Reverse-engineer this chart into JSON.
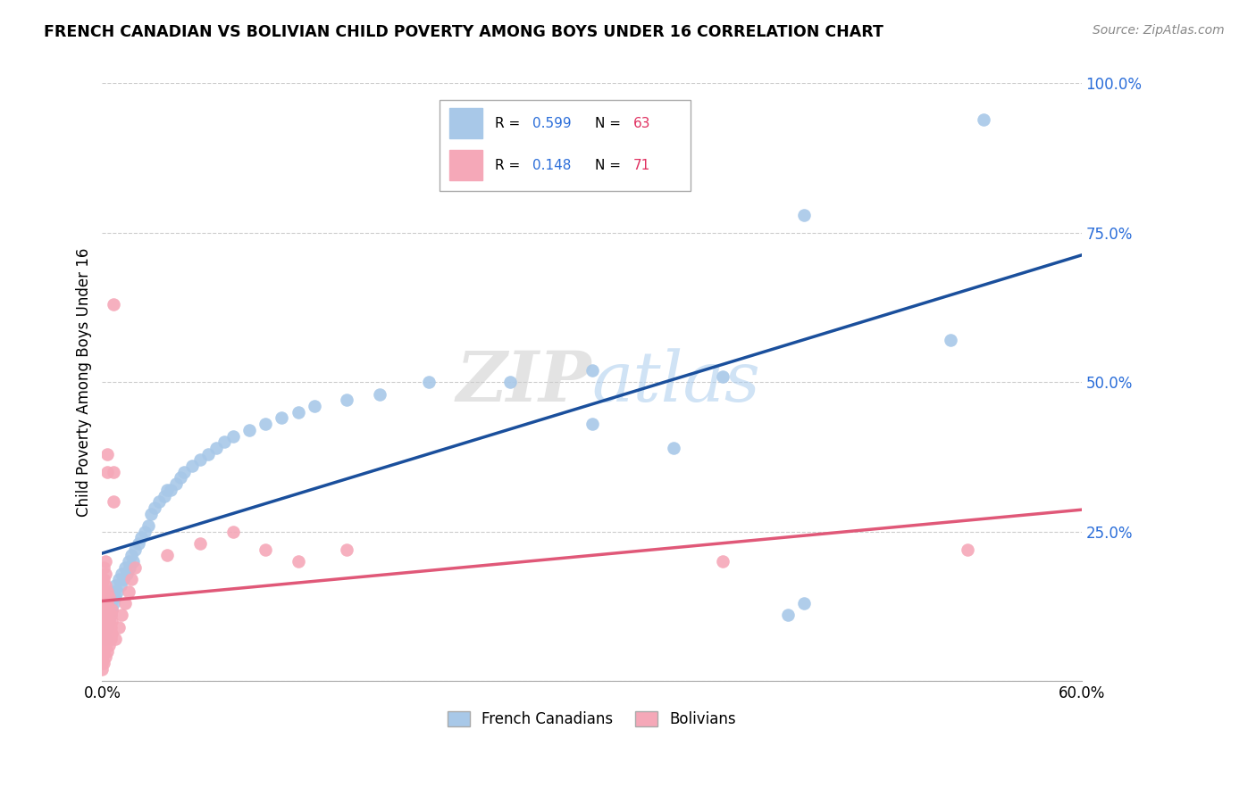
{
  "title": "FRENCH CANADIAN VS BOLIVIAN CHILD POVERTY AMONG BOYS UNDER 16 CORRELATION CHART",
  "source": "Source: ZipAtlas.com",
  "ylabel": "Child Poverty Among Boys Under 16",
  "xlim": [
    0.0,
    0.6
  ],
  "ylim": [
    0.0,
    1.0
  ],
  "yticks": [
    0.0,
    0.25,
    0.5,
    0.75,
    1.0
  ],
  "yticklabels": [
    "",
    "25.0%",
    "50.0%",
    "75.0%",
    "100.0%"
  ],
  "french_r": 0.599,
  "french_n": 63,
  "bolivian_r": 0.148,
  "bolivian_n": 71,
  "french_color": "#a8c8e8",
  "bolivian_color": "#f5a8b8",
  "french_line_color": "#1a4f9c",
  "bolivian_line_color": "#e05878",
  "french_canadians": [
    [
      0.001,
      0.08
    ],
    [
      0.002,
      0.07
    ],
    [
      0.003,
      0.09
    ],
    [
      0.003,
      0.11
    ],
    [
      0.004,
      0.1
    ],
    [
      0.004,
      0.12
    ],
    [
      0.005,
      0.11
    ],
    [
      0.005,
      0.13
    ],
    [
      0.006,
      0.12
    ],
    [
      0.006,
      0.14
    ],
    [
      0.007,
      0.13
    ],
    [
      0.007,
      0.15
    ],
    [
      0.008,
      0.14
    ],
    [
      0.008,
      0.16
    ],
    [
      0.009,
      0.15
    ],
    [
      0.01,
      0.17
    ],
    [
      0.011,
      0.16
    ],
    [
      0.012,
      0.18
    ],
    [
      0.013,
      0.17
    ],
    [
      0.014,
      0.19
    ],
    [
      0.015,
      0.18
    ],
    [
      0.016,
      0.2
    ],
    [
      0.017,
      0.19
    ],
    [
      0.018,
      0.21
    ],
    [
      0.019,
      0.2
    ],
    [
      0.02,
      0.22
    ],
    [
      0.022,
      0.23
    ],
    [
      0.024,
      0.24
    ],
    [
      0.026,
      0.25
    ],
    [
      0.028,
      0.26
    ],
    [
      0.03,
      0.28
    ],
    [
      0.032,
      0.29
    ],
    [
      0.035,
      0.3
    ],
    [
      0.038,
      0.31
    ],
    [
      0.04,
      0.32
    ],
    [
      0.042,
      0.32
    ],
    [
      0.045,
      0.33
    ],
    [
      0.048,
      0.34
    ],
    [
      0.05,
      0.35
    ],
    [
      0.055,
      0.36
    ],
    [
      0.06,
      0.37
    ],
    [
      0.065,
      0.38
    ],
    [
      0.07,
      0.39
    ],
    [
      0.075,
      0.4
    ],
    [
      0.08,
      0.41
    ],
    [
      0.09,
      0.42
    ],
    [
      0.1,
      0.43
    ],
    [
      0.11,
      0.44
    ],
    [
      0.12,
      0.45
    ],
    [
      0.13,
      0.46
    ],
    [
      0.15,
      0.47
    ],
    [
      0.17,
      0.48
    ],
    [
      0.2,
      0.5
    ],
    [
      0.25,
      0.5
    ],
    [
      0.3,
      0.43
    ],
    [
      0.3,
      0.52
    ],
    [
      0.35,
      0.39
    ],
    [
      0.38,
      0.51
    ],
    [
      0.42,
      0.11
    ],
    [
      0.43,
      0.13
    ],
    [
      0.43,
      0.78
    ],
    [
      0.52,
      0.57
    ],
    [
      0.54,
      0.94
    ]
  ],
  "bolivians": [
    [
      0.0,
      0.02
    ],
    [
      0.0,
      0.04
    ],
    [
      0.0,
      0.05
    ],
    [
      0.0,
      0.06
    ],
    [
      0.0,
      0.07
    ],
    [
      0.0,
      0.08
    ],
    [
      0.0,
      0.09
    ],
    [
      0.0,
      0.1
    ],
    [
      0.0,
      0.11
    ],
    [
      0.0,
      0.12
    ],
    [
      0.0,
      0.13
    ],
    [
      0.0,
      0.14
    ],
    [
      0.0,
      0.15
    ],
    [
      0.0,
      0.16
    ],
    [
      0.0,
      0.17
    ],
    [
      0.0,
      0.03
    ],
    [
      0.001,
      0.03
    ],
    [
      0.001,
      0.05
    ],
    [
      0.001,
      0.07
    ],
    [
      0.001,
      0.09
    ],
    [
      0.001,
      0.11
    ],
    [
      0.001,
      0.13
    ],
    [
      0.001,
      0.15
    ],
    [
      0.001,
      0.17
    ],
    [
      0.001,
      0.19
    ],
    [
      0.002,
      0.04
    ],
    [
      0.002,
      0.06
    ],
    [
      0.002,
      0.08
    ],
    [
      0.002,
      0.1
    ],
    [
      0.002,
      0.12
    ],
    [
      0.002,
      0.14
    ],
    [
      0.002,
      0.16
    ],
    [
      0.002,
      0.18
    ],
    [
      0.002,
      0.2
    ],
    [
      0.003,
      0.05
    ],
    [
      0.003,
      0.07
    ],
    [
      0.003,
      0.09
    ],
    [
      0.003,
      0.11
    ],
    [
      0.003,
      0.13
    ],
    [
      0.003,
      0.15
    ],
    [
      0.003,
      0.35
    ],
    [
      0.003,
      0.38
    ],
    [
      0.004,
      0.06
    ],
    [
      0.004,
      0.08
    ],
    [
      0.004,
      0.1
    ],
    [
      0.004,
      0.12
    ],
    [
      0.004,
      0.14
    ],
    [
      0.005,
      0.07
    ],
    [
      0.005,
      0.09
    ],
    [
      0.005,
      0.11
    ],
    [
      0.006,
      0.08
    ],
    [
      0.006,
      0.1
    ],
    [
      0.006,
      0.12
    ],
    [
      0.007,
      0.3
    ],
    [
      0.007,
      0.35
    ],
    [
      0.007,
      0.63
    ],
    [
      0.008,
      0.07
    ],
    [
      0.01,
      0.09
    ],
    [
      0.012,
      0.11
    ],
    [
      0.014,
      0.13
    ],
    [
      0.016,
      0.15
    ],
    [
      0.018,
      0.17
    ],
    [
      0.02,
      0.19
    ],
    [
      0.04,
      0.21
    ],
    [
      0.06,
      0.23
    ],
    [
      0.08,
      0.25
    ],
    [
      0.1,
      0.22
    ],
    [
      0.12,
      0.2
    ],
    [
      0.15,
      0.22
    ],
    [
      0.38,
      0.2
    ],
    [
      0.53,
      0.22
    ]
  ]
}
